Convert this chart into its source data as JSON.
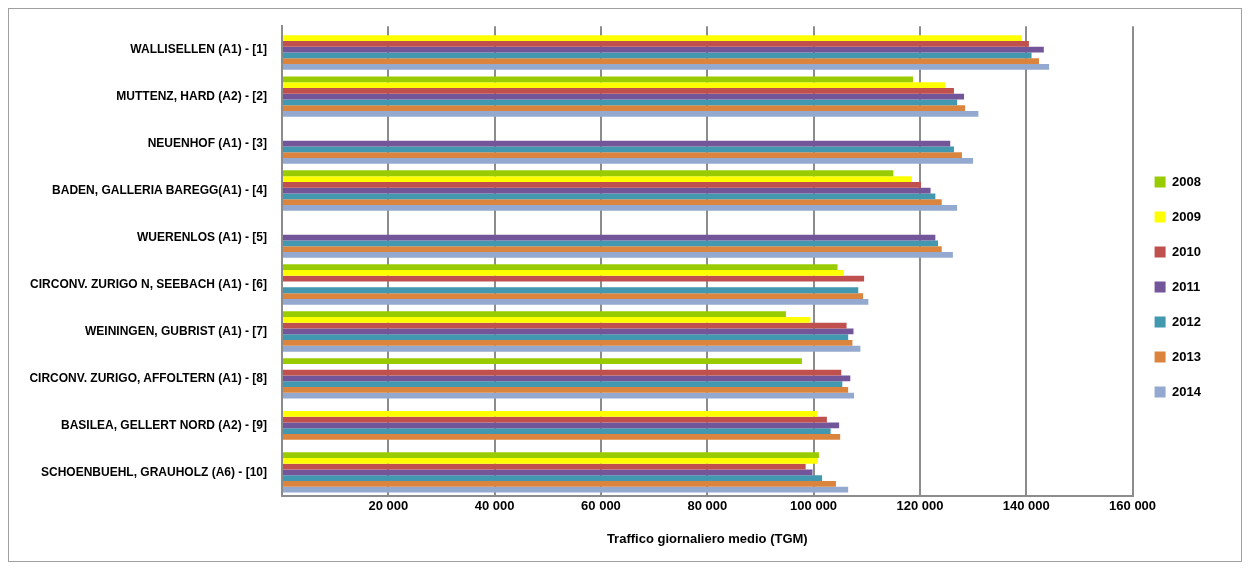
{
  "chart_data": {
    "type": "bar",
    "orientation": "horizontal",
    "xlabel": "Traffico giornaliero medio (TGM)",
    "categories": [
      "WALLISELLEN (A1) - [1]",
      "MUTTENZ, HARD (A2) - [2]",
      "NEUENHOF (A1) - [3]",
      "BADEN, GALLERIA BAREGG(A1) - [4]",
      "WUERENLOS (A1) - [5]",
      "CIRCONV. ZURIGO N, SEEBACH (A1) - [6]",
      "WEININGEN, GUBRIST (A1) - [7]",
      "CIRCONV. ZURIGO, AFFOLTERN (A1) - [8]",
      "BASILEA, GELLERT NORD (A2) - [9]",
      "SCHOENBUEHL, GRAUHOLZ (A6) - [10]"
    ],
    "series": [
      {
        "name": "2008",
        "color": "#99cc00",
        "values": [
          null,
          118700,
          null,
          115000,
          null,
          104500,
          94800,
          97800,
          null,
          101000
        ]
      },
      {
        "name": "2009",
        "color": "#ffff00",
        "values": [
          139200,
          124700,
          null,
          118500,
          null,
          105700,
          99400,
          null,
          100700,
          100800
        ]
      },
      {
        "name": "2010",
        "color": "#c0504d",
        "values": [
          140500,
          126400,
          null,
          120200,
          null,
          109500,
          106200,
          105200,
          102500,
          98500
        ]
      },
      {
        "name": "2011",
        "color": "#73569a",
        "values": [
          143300,
          128300,
          125700,
          122000,
          122900,
          null,
          107500,
          106900,
          104800,
          99800
        ]
      },
      {
        "name": "2012",
        "color": "#4198af",
        "values": [
          141000,
          127000,
          126400,
          122900,
          123400,
          108400,
          106500,
          105400,
          103200,
          101600
        ]
      },
      {
        "name": "2013",
        "color": "#db843d",
        "values": [
          142400,
          128500,
          127900,
          124100,
          124100,
          109300,
          107300,
          106500,
          105000,
          104200
        ]
      },
      {
        "name": "2014",
        "color": "#93a9cf",
        "values": [
          144300,
          131000,
          130000,
          127000,
          126200,
          110300,
          108800,
          107600,
          null,
          106500
        ]
      }
    ],
    "xlim": [
      0,
      160000
    ],
    "xticks": [
      {
        "value": 0,
        "label": null
      },
      {
        "value": 20000,
        "label": "20 000"
      },
      {
        "value": 40000,
        "label": "40 000"
      },
      {
        "value": 60000,
        "label": "60 000"
      },
      {
        "value": 80000,
        "label": "80 000"
      },
      {
        "value": 100000,
        "label": "100 000"
      },
      {
        "value": 120000,
        "label": "120 000"
      },
      {
        "value": 140000,
        "label": "140 000"
      },
      {
        "value": 160000,
        "label": "160 000"
      }
    ],
    "grid": "x",
    "legend": "right"
  }
}
